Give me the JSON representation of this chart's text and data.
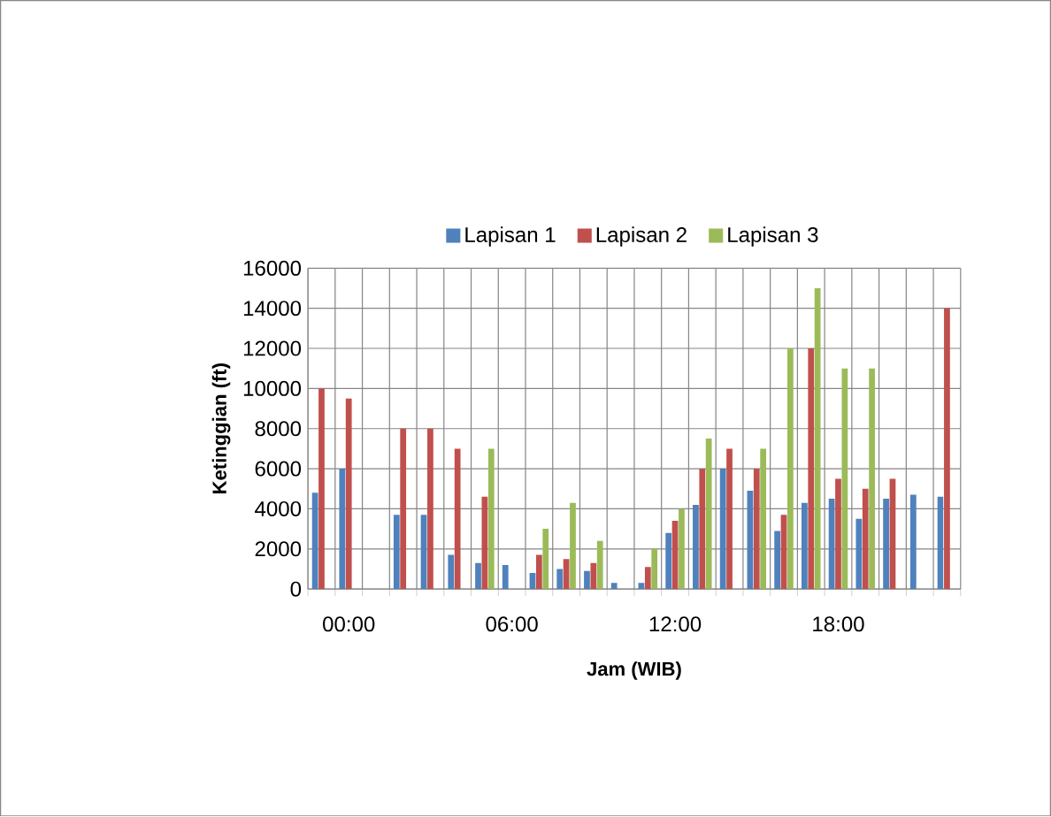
{
  "chart_data": {
    "type": "bar",
    "xlabel": "Jam (WIB)",
    "ylabel": "Ketinggian (ft)",
    "categories": [
      null,
      "00:00",
      null,
      null,
      null,
      null,
      null,
      "06:00",
      null,
      null,
      null,
      null,
      null,
      "12:00",
      null,
      null,
      null,
      null,
      null,
      "18:00",
      null,
      null,
      null,
      null
    ],
    "series": [
      {
        "name": "Lapisan 1",
        "color": "#4f81bd",
        "values": [
          4800,
          6000,
          null,
          3700,
          3700,
          1700,
          1300,
          1200,
          800,
          1000,
          900,
          300,
          300,
          2800,
          4200,
          6000,
          4900,
          2900,
          4300,
          4500,
          3500,
          4500,
          4700,
          4600
        ]
      },
      {
        "name": "Lapisan 2",
        "color": "#c0504d",
        "values": [
          10000,
          9500,
          null,
          8000,
          8000,
          7000,
          4600,
          null,
          1700,
          1500,
          1300,
          null,
          1100,
          3400,
          6000,
          7000,
          6000,
          3700,
          12000,
          5500,
          5000,
          5500,
          null,
          14000
        ]
      },
      {
        "name": "Lapisan 3",
        "color": "#9bbb59",
        "values": [
          null,
          null,
          null,
          null,
          null,
          null,
          7000,
          null,
          3000,
          4300,
          2400,
          null,
          2000,
          4000,
          7500,
          null,
          7000,
          12000,
          15000,
          11000,
          11000,
          null,
          null,
          null
        ]
      }
    ],
    "ylim": [
      0,
      16000
    ],
    "yticks": [
      0,
      2000,
      4000,
      6000,
      8000,
      10000,
      12000,
      14000,
      16000
    ],
    "grid": true,
    "legend": "top"
  }
}
